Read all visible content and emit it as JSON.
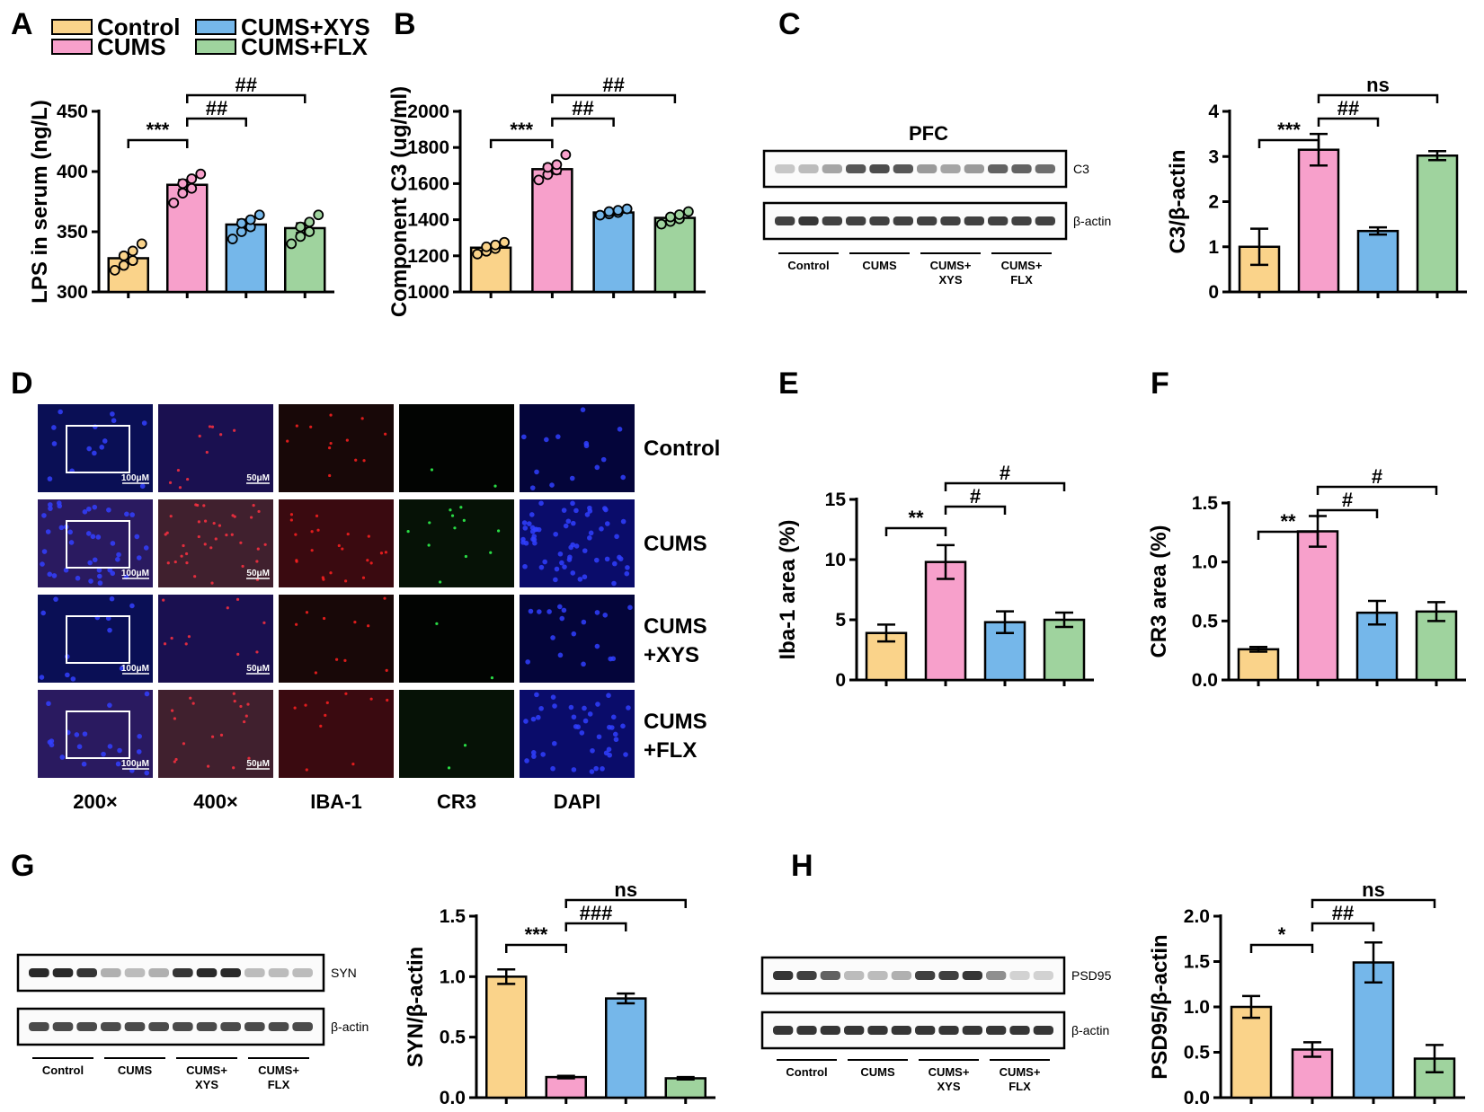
{
  "colors": {
    "Control": "#fad38a",
    "CUMS": "#f7a0cb",
    "CUMS+XYS": "#75b7ea",
    "CUMS+FLX": "#9fd39e"
  },
  "legend": {
    "items": [
      "Control",
      "CUMS",
      "CUMS+XYS",
      "CUMS+FLX"
    ]
  },
  "panel_labels": [
    "A",
    "B",
    "C",
    "D",
    "E",
    "F",
    "G",
    "H"
  ],
  "chart_data": [
    {
      "id": "A",
      "type": "bar",
      "categories": [
        "Control",
        "CUMS",
        "CUMS+XYS",
        "CUMS+FLX"
      ],
      "values": [
        328,
        389,
        356,
        353
      ],
      "errors": [
        4,
        4,
        4,
        4
      ],
      "points": [
        [
          318,
          322,
          326,
          330,
          334,
          340
        ],
        [
          374,
          382,
          386,
          390,
          394,
          398
        ],
        [
          344,
          350,
          354,
          357,
          360,
          364
        ],
        [
          340,
          346,
          350,
          354,
          358,
          364
        ]
      ],
      "ylabel": "LPS in serum (ng/L)",
      "ylim": [
        300,
        450
      ],
      "yticks": [
        "300",
        "350",
        "400",
        "450"
      ],
      "annotations": [
        {
          "from": 0,
          "to": 1,
          "text": "***",
          "level": 1
        },
        {
          "from": 1,
          "to": 2,
          "text": "##",
          "level": 2
        },
        {
          "from": 1,
          "to": 3,
          "text": "##",
          "level": 3
        }
      ]
    },
    {
      "id": "B",
      "type": "bar",
      "categories": [
        "Control",
        "CUMS",
        "CUMS+XYS",
        "CUMS+FLX"
      ],
      "values": [
        1245,
        1680,
        1440,
        1410
      ],
      "errors": [
        15,
        25,
        10,
        15
      ],
      "points": [
        [
          1210,
          1225,
          1240,
          1250,
          1260,
          1275
        ],
        [
          1620,
          1650,
          1675,
          1690,
          1705,
          1760
        ],
        [
          1425,
          1432,
          1440,
          1445,
          1452,
          1460
        ],
        [
          1375,
          1390,
          1405,
          1415,
          1428,
          1445
        ]
      ],
      "ylabel": "Component C3 (ug/ml)",
      "ylim": [
        1000,
        2000
      ],
      "yticks": [
        "1000",
        "1200",
        "1400",
        "1600",
        "1800",
        "2000"
      ],
      "annotations": [
        {
          "from": 0,
          "to": 1,
          "text": "***",
          "level": 1
        },
        {
          "from": 1,
          "to": 2,
          "text": "##",
          "level": 2
        },
        {
          "from": 1,
          "to": 3,
          "text": "##",
          "level": 3
        }
      ]
    },
    {
      "id": "C",
      "type": "bar",
      "categories": [
        "Control",
        "CUMS",
        "CUMS+XYS",
        "CUMS+FLX"
      ],
      "values": [
        1.0,
        3.15,
        1.35,
        3.02
      ],
      "errors": [
        0.4,
        0.35,
        0.08,
        0.1
      ],
      "ylabel": "C3/β-actin",
      "ylim": [
        0,
        4
      ],
      "yticks": [
        "0",
        "1",
        "2",
        "3",
        "4"
      ],
      "annotations": [
        {
          "from": 0,
          "to": 1,
          "text": "***",
          "level": 1
        },
        {
          "from": 1,
          "to": 2,
          "text": "##",
          "level": 2
        },
        {
          "from": 1,
          "to": 3,
          "text": "ns",
          "level": 3
        }
      ]
    },
    {
      "id": "E",
      "type": "bar",
      "categories": [
        "Control",
        "CUMS",
        "CUMS+XYS",
        "CUMS+FLX"
      ],
      "values": [
        3.9,
        9.8,
        4.8,
        5.0
      ],
      "errors": [
        0.7,
        1.4,
        0.9,
        0.6
      ],
      "ylabel": "Iba-1 area (%)",
      "ylim": [
        0,
        15
      ],
      "yticks": [
        "0",
        "5",
        "10",
        "15"
      ],
      "annotations": [
        {
          "from": 0,
          "to": 1,
          "text": "**",
          "level": 1
        },
        {
          "from": 1,
          "to": 2,
          "text": "#",
          "level": 2
        },
        {
          "from": 1,
          "to": 3,
          "text": "#",
          "level": 3
        }
      ]
    },
    {
      "id": "F",
      "type": "bar",
      "categories": [
        "Control",
        "CUMS",
        "CUMS+XYS",
        "CUMS+FLX"
      ],
      "values": [
        0.26,
        1.26,
        0.57,
        0.58
      ],
      "errors": [
        0.02,
        0.13,
        0.1,
        0.08
      ],
      "ylabel": "CR3 area (%)",
      "ylim": [
        0,
        1.5
      ],
      "yticks": [
        "0.0",
        "0.5",
        "1.0",
        "1.5"
      ],
      "annotations": [
        {
          "from": 0,
          "to": 1,
          "text": "**",
          "level": 1
        },
        {
          "from": 1,
          "to": 2,
          "text": "#",
          "level": 2
        },
        {
          "from": 1,
          "to": 3,
          "text": "#",
          "level": 3
        }
      ]
    },
    {
      "id": "G",
      "type": "bar",
      "categories": [
        "Control",
        "CUMS",
        "CUMS+XYS",
        "CUMS+FLX"
      ],
      "values": [
        1.0,
        0.17,
        0.82,
        0.16
      ],
      "errors": [
        0.06,
        0.01,
        0.04,
        0.01
      ],
      "ylabel": "SYN/β-actin",
      "ylim": [
        0,
        1.5
      ],
      "yticks": [
        "0.0",
        "0.5",
        "1.0",
        "1.5"
      ],
      "annotations": [
        {
          "from": 0,
          "to": 1,
          "text": "***",
          "level": 1
        },
        {
          "from": 1,
          "to": 2,
          "text": "###",
          "level": 2
        },
        {
          "from": 1,
          "to": 3,
          "text": "ns",
          "level": 3
        }
      ]
    },
    {
      "id": "H",
      "type": "bar",
      "categories": [
        "Control",
        "CUMS",
        "CUMS+XYS",
        "CUMS+FLX"
      ],
      "values": [
        1.0,
        0.53,
        1.49,
        0.43
      ],
      "errors": [
        0.12,
        0.08,
        0.22,
        0.15
      ],
      "ylabel": "PSD95/β-actin",
      "ylim": [
        0,
        2.0
      ],
      "yticks": [
        "0.0",
        "0.5",
        "1.0",
        "1.5",
        "2.0"
      ],
      "annotations": [
        {
          "from": 0,
          "to": 1,
          "text": "*",
          "level": 1
        },
        {
          "from": 1,
          "to": 2,
          "text": "##",
          "level": 2
        },
        {
          "from": 1,
          "to": 3,
          "text": "ns",
          "level": 3
        }
      ]
    }
  ],
  "blots": [
    {
      "id": "C",
      "title": "PFC",
      "rows": [
        "C3",
        "β-actin"
      ],
      "groups": [
        "Control",
        "CUMS",
        "CUMS+\nXYS",
        "CUMS+\nFLX"
      ],
      "intensities": [
        [
          0.25,
          0.3,
          0.4,
          0.75,
          0.8,
          0.75,
          0.45,
          0.4,
          0.45,
          0.7,
          0.7,
          0.65
        ],
        [
          0.85,
          0.9,
          0.85,
          0.85,
          0.85,
          0.85,
          0.85,
          0.85,
          0.85,
          0.85,
          0.85,
          0.85
        ]
      ]
    },
    {
      "id": "G",
      "title": "",
      "rows": [
        "SYN",
        "β-actin"
      ],
      "groups": [
        "Control",
        "CUMS",
        "CUMS+\nXYS",
        "CUMS+\nFLX"
      ],
      "intensities": [
        [
          0.95,
          0.95,
          0.9,
          0.35,
          0.3,
          0.35,
          0.9,
          0.95,
          0.95,
          0.3,
          0.3,
          0.3
        ],
        [
          0.8,
          0.8,
          0.8,
          0.8,
          0.8,
          0.8,
          0.8,
          0.8,
          0.8,
          0.8,
          0.8,
          0.8
        ]
      ]
    },
    {
      "id": "H",
      "title": "",
      "rows": [
        "PSD95",
        "β-actin"
      ],
      "groups": [
        "Control",
        "CUMS",
        "CUMS+\nXYS",
        "CUMS+\nFLX"
      ],
      "intensities": [
        [
          0.9,
          0.85,
          0.7,
          0.3,
          0.3,
          0.35,
          0.85,
          0.85,
          0.9,
          0.5,
          0.2,
          0.2
        ],
        [
          0.9,
          0.9,
          0.9,
          0.9,
          0.9,
          0.9,
          0.9,
          0.9,
          0.9,
          0.9,
          0.9,
          0.9
        ]
      ]
    }
  ],
  "micrograph": {
    "row_labels": [
      "Control",
      "CUMS",
      "CUMS\n+XYS",
      "CUMS\n+FLX"
    ],
    "col_labels": [
      "200×",
      "400×",
      "IBA-1",
      "CR3",
      "DAPI"
    ],
    "scale_200": "100μM",
    "scale_400": "50μM"
  }
}
